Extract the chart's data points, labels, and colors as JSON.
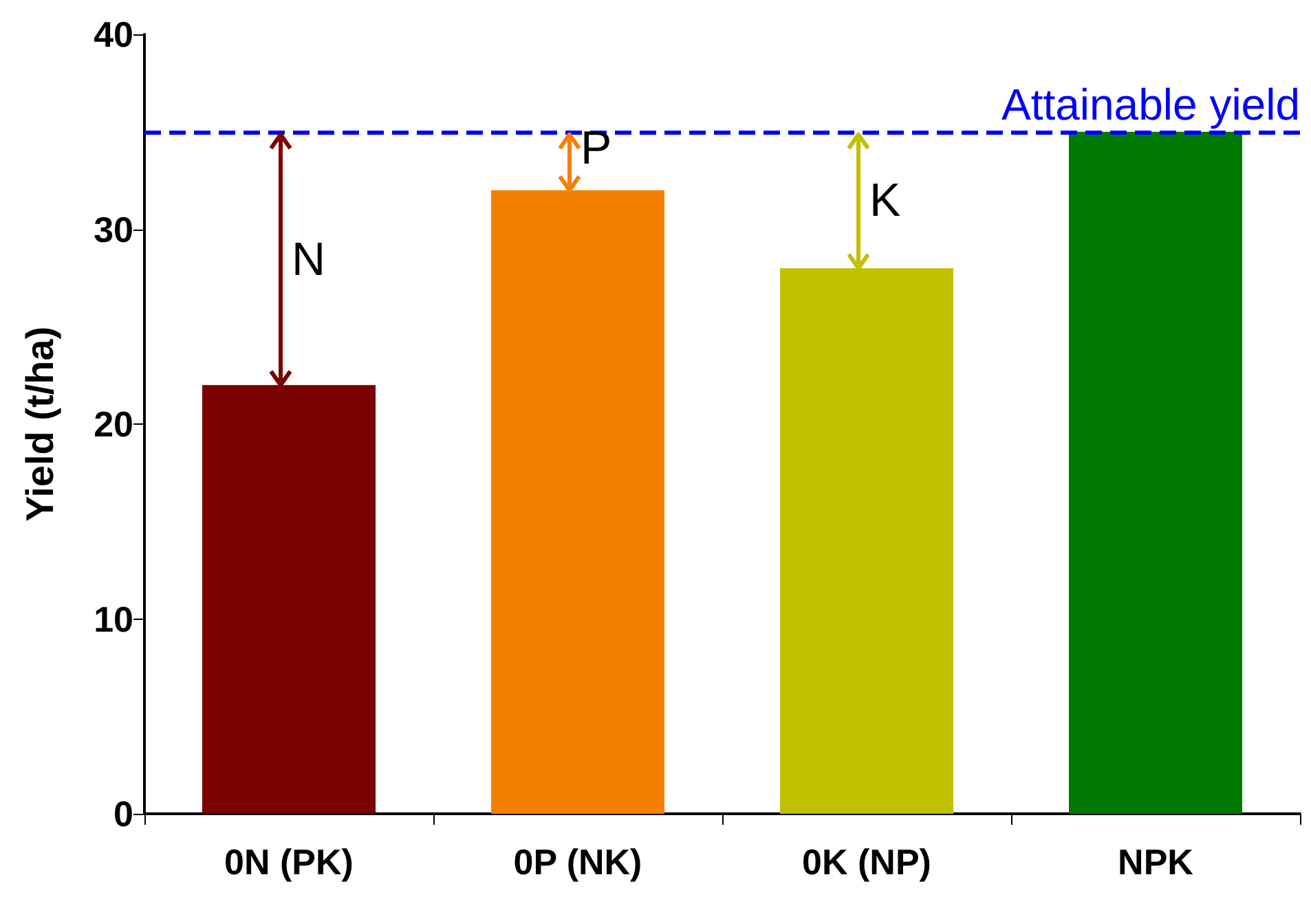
{
  "chart_data": {
    "type": "bar",
    "ylabel": "Yield (t/ha)",
    "categories": [
      "0N (PK)",
      "0P (NK)",
      "0K (NP)",
      "NPK"
    ],
    "values": [
      22,
      32,
      28,
      35
    ],
    "colors": [
      "#7b0000",
      "#f58000",
      "#c0c000",
      "#007a00"
    ],
    "ylim": [
      0,
      40
    ],
    "yticks": [
      0,
      10,
      20,
      30,
      40
    ],
    "grid": false,
    "ref_lines": [
      {
        "axis": "y",
        "value": 35,
        "label": "Attainable yield",
        "color": "#0000ff",
        "line_style": "dashed"
      }
    ],
    "annotations": [
      "N",
      "P",
      "K"
    ]
  }
}
